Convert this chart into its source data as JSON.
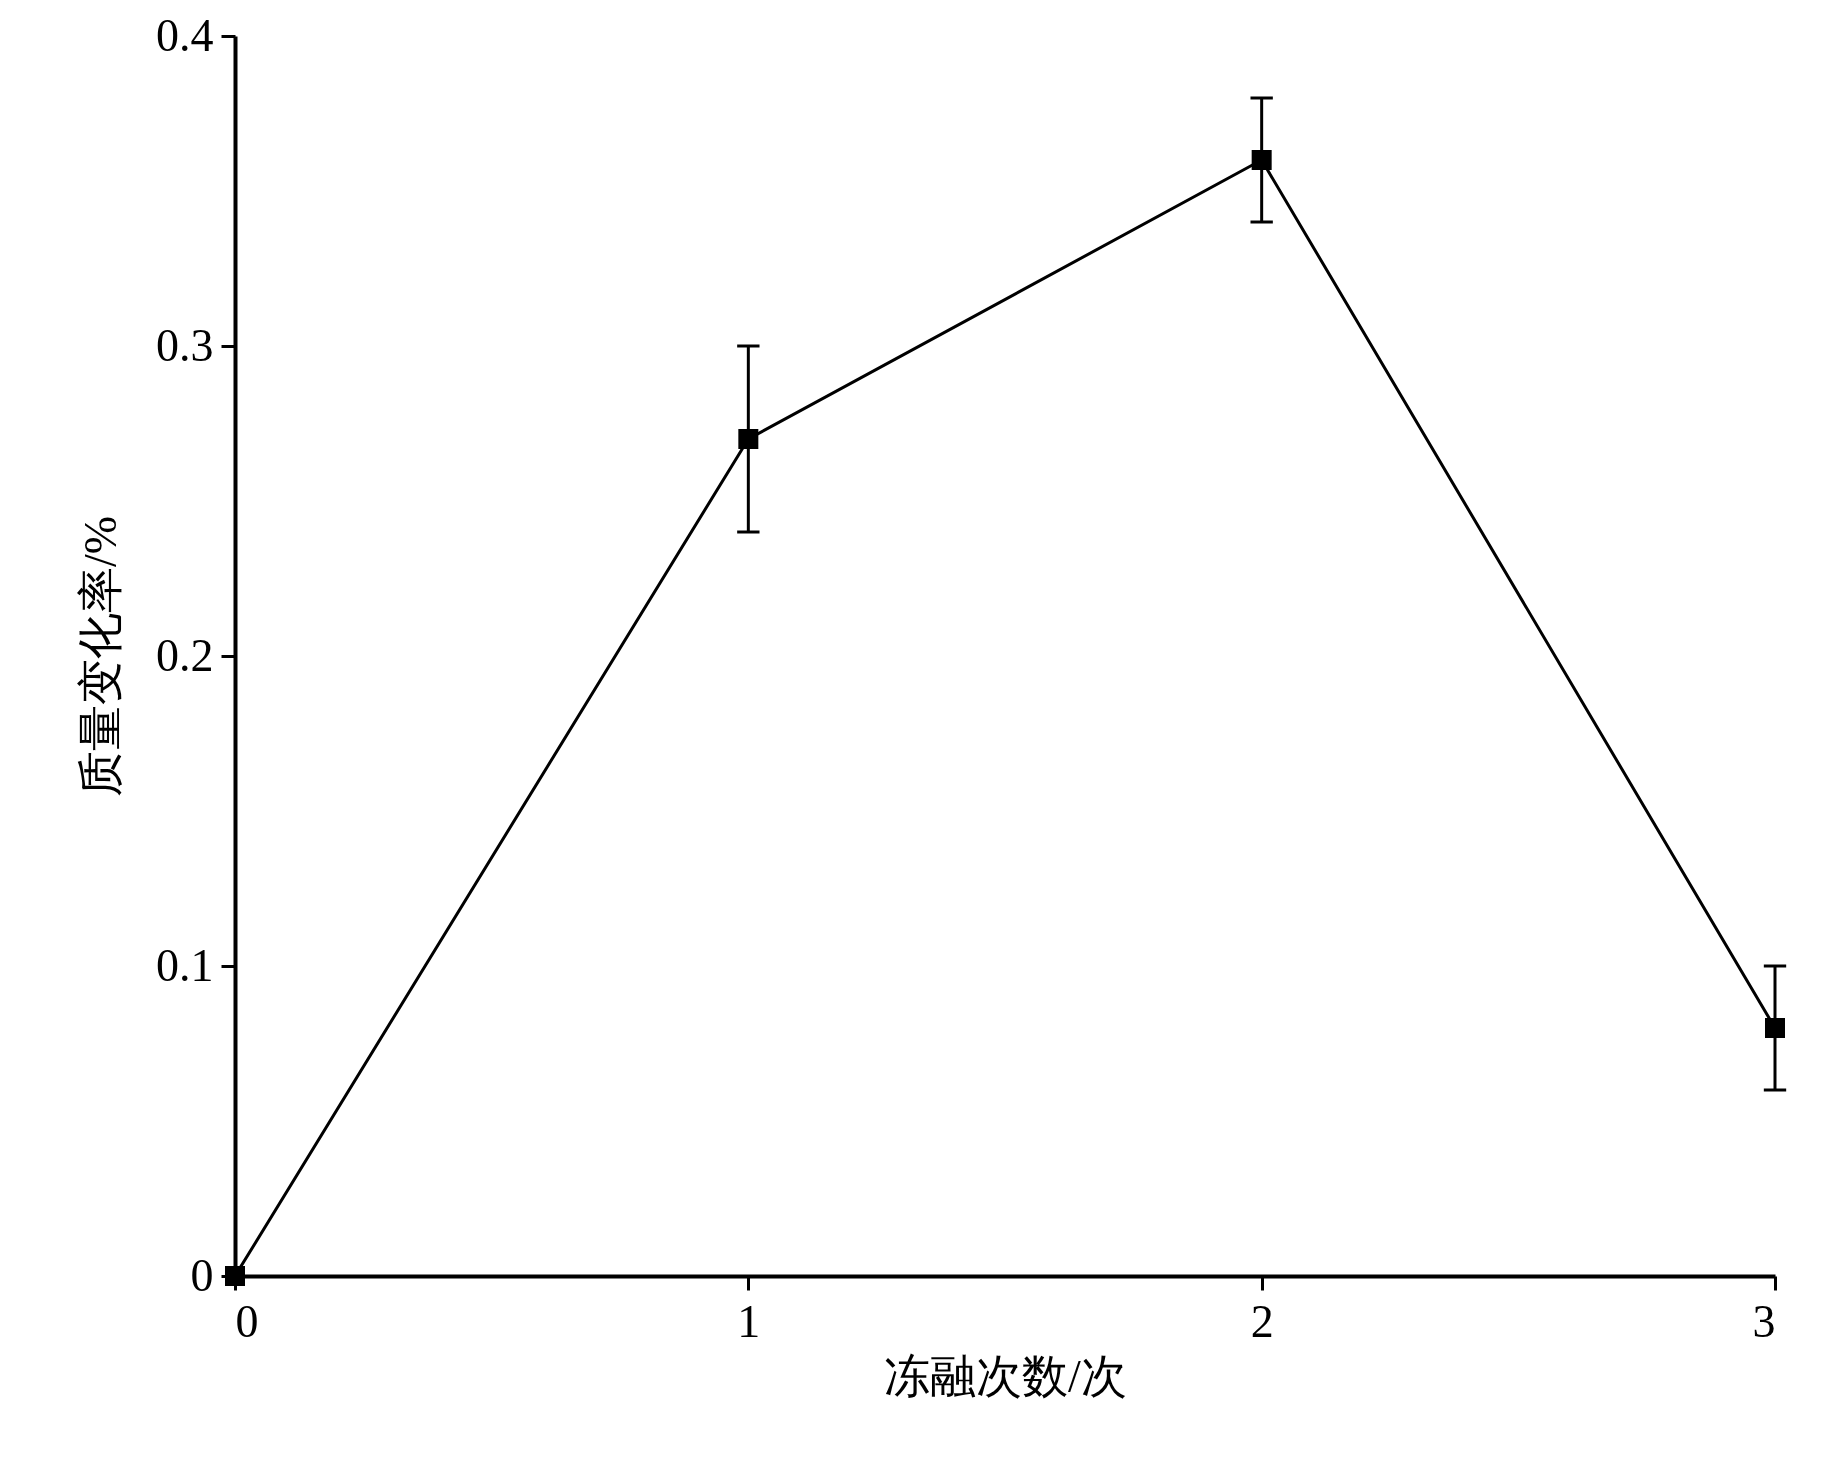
{
  "chart_data": {
    "type": "line",
    "xlabel": "冻融次数/次",
    "ylabel": "质量变化率/%",
    "x": [
      0,
      1,
      2,
      3
    ],
    "values": [
      0,
      0.27,
      0.36,
      0.08
    ],
    "errors": [
      null,
      0.03,
      0.02,
      0.02
    ],
    "color": "#000000",
    "marker": "square",
    "line_style": "solid",
    "xlim": [
      0,
      3
    ],
    "xticks": [
      0,
      1,
      2,
      3
    ],
    "ylim": [
      0,
      0.4
    ],
    "yticks": [
      0,
      0.1,
      0.2,
      0.3,
      0.4
    ],
    "grid": false
  }
}
